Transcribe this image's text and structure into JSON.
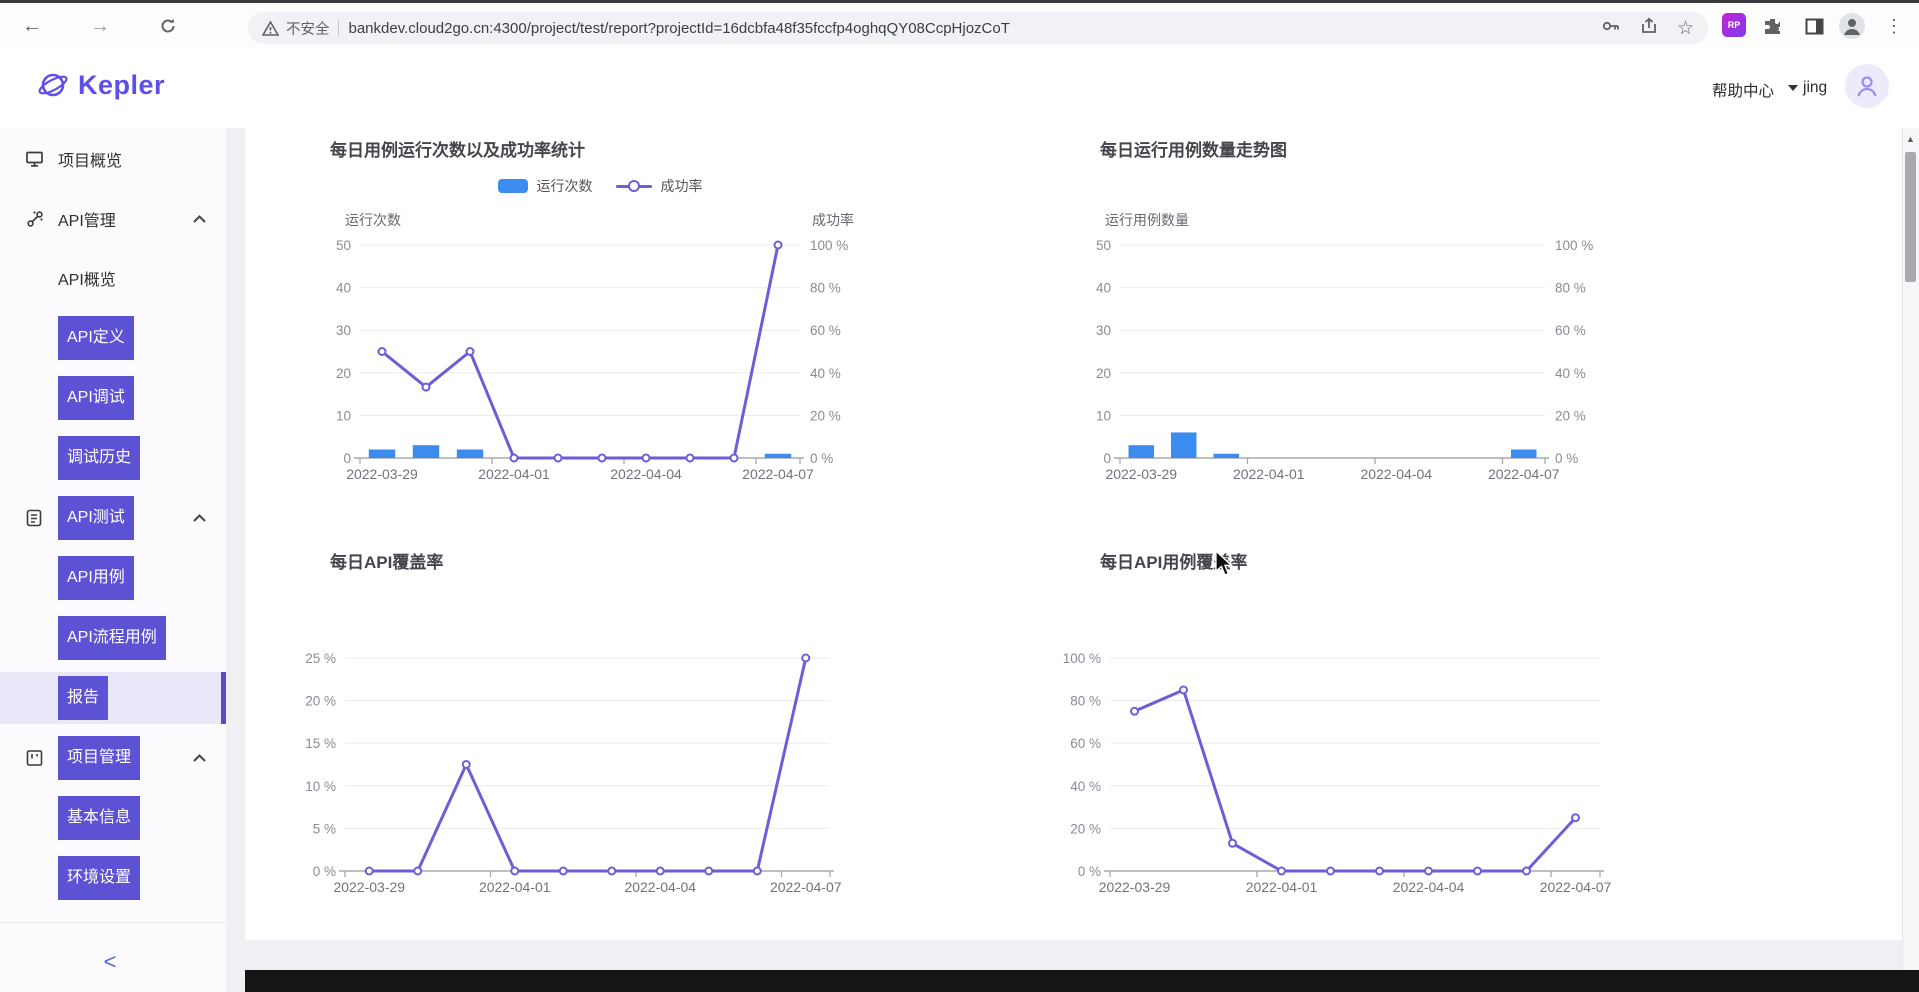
{
  "colors": {
    "accent_purple": "#5e52d4",
    "selected_row_bg": "#eae7f8",
    "bar_blue": "#3c8cf0",
    "line_purple": "#6e5dd8",
    "kepler_purple": "#5d4fe8"
  },
  "browser": {
    "security_label": "不安全",
    "url": "bankdev.cloud2go.cn:4300/project/test/report?projectId=16dcbfa48f35fccfp4oghqQY08CcpHjozCoT",
    "extension_badge": "RP"
  },
  "header": {
    "logo_text": "Kepler",
    "help_label": "帮助中心",
    "username": "jing"
  },
  "sidebar": {
    "items": [
      {
        "label": "项目概览",
        "icon": "monitor"
      },
      {
        "label": "API管理",
        "icon": "api"
      },
      {
        "label": "API概览"
      },
      {
        "label": "API定义",
        "boxed": true
      },
      {
        "label": "API调试",
        "boxed": true
      },
      {
        "label": "调试历史",
        "boxed": true
      },
      {
        "label": "API测试",
        "icon": "doc",
        "boxed": true
      },
      {
        "label": "API用例",
        "boxed": true
      },
      {
        "label": "API流程用例",
        "boxed": true
      },
      {
        "label": "报告",
        "boxed": true,
        "selected": true
      },
      {
        "label": "项目管理",
        "icon": "board",
        "boxed": true
      },
      {
        "label": "基本信息",
        "boxed": true
      },
      {
        "label": "环境设置",
        "boxed": true
      }
    ],
    "collapse_label": "<"
  },
  "chart_data": [
    {
      "type": "bar+line",
      "title": "每日用例运行次数以及成功率统计",
      "categories": [
        "2022-03-29",
        "2022-03-30",
        "2022-03-31",
        "2022-04-01",
        "2022-04-02",
        "2022-04-03",
        "2022-04-04",
        "2022-04-05",
        "2022-04-06",
        "2022-04-07"
      ],
      "x_axis_labels_shown": [
        "2022-03-29",
        "2022-04-01",
        "2022-04-04",
        "2022-04-07"
      ],
      "left_axis": {
        "title": "运行次数",
        "min": 0,
        "max": 50,
        "labels": [
          "50",
          "40",
          "30",
          "20",
          "10",
          "0"
        ]
      },
      "right_axis": {
        "title": "成功率",
        "min": 0,
        "max": 100,
        "labels": [
          "100 %",
          "80 %",
          "60 %",
          "40 %",
          "20 %",
          "0 %"
        ]
      },
      "legend": [
        "运行次数",
        "成功率"
      ],
      "grid": true,
      "series": [
        {
          "name": "运行次数",
          "kind": "bar",
          "axis": "left",
          "color": "#3c8cf0",
          "values": [
            2,
            3,
            2,
            0,
            0,
            0,
            0,
            0,
            0,
            1
          ]
        },
        {
          "name": "成功率",
          "kind": "line",
          "axis": "right",
          "color": "#6e5dd8",
          "values": [
            50,
            33.3,
            50,
            0,
            0,
            0,
            0,
            0,
            0,
            100
          ]
        }
      ]
    },
    {
      "type": "bar",
      "title": "每日运行用例数量走势图",
      "categories": [
        "2022-03-29",
        "2022-03-30",
        "2022-03-31",
        "2022-04-01",
        "2022-04-02",
        "2022-04-03",
        "2022-04-04",
        "2022-04-05",
        "2022-04-06",
        "2022-04-07"
      ],
      "x_axis_labels_shown": [
        "2022-03-29",
        "2022-04-01",
        "2022-04-04",
        "2022-04-07"
      ],
      "left_axis": {
        "title": "运行用例数量",
        "min": 0,
        "max": 50,
        "labels": [
          "50",
          "40",
          "30",
          "20",
          "10",
          "0"
        ]
      },
      "right_axis": {
        "title": "",
        "min": 0,
        "max": 100,
        "labels": [
          "100 %",
          "80 %",
          "60 %",
          "40 %",
          "20 %",
          "0 %"
        ]
      },
      "grid": true,
      "series": [
        {
          "name": "运行用例数量",
          "kind": "bar",
          "axis": "left",
          "color": "#3c8cf0",
          "values": [
            3,
            6,
            1,
            0,
            0,
            0,
            0,
            0,
            0,
            2
          ]
        }
      ]
    },
    {
      "type": "line",
      "title": "每日API覆盖率",
      "categories": [
        "2022-03-29",
        "2022-03-30",
        "2022-03-31",
        "2022-04-01",
        "2022-04-02",
        "2022-04-03",
        "2022-04-04",
        "2022-04-05",
        "2022-04-06",
        "2022-04-07"
      ],
      "x_axis_labels_shown": [
        "2022-03-29",
        "2022-04-01",
        "2022-04-04",
        "2022-04-07"
      ],
      "left_axis": {
        "title": "",
        "min": 0,
        "max": 25,
        "labels": [
          "25 %",
          "20 %",
          "15 %",
          "10 %",
          "5 %",
          "0 %"
        ]
      },
      "grid": true,
      "series": [
        {
          "name": "API覆盖率",
          "kind": "line",
          "axis": "left",
          "color": "#6e5dd8",
          "values": [
            0,
            0,
            12.5,
            0,
            0,
            0,
            0,
            0,
            0,
            25
          ]
        }
      ]
    },
    {
      "type": "line",
      "title": "每日API用例覆盖率",
      "categories": [
        "2022-03-29",
        "2022-03-30",
        "2022-03-31",
        "2022-04-01",
        "2022-04-02",
        "2022-04-03",
        "2022-04-04",
        "2022-04-05",
        "2022-04-06",
        "2022-04-07"
      ],
      "x_axis_labels_shown": [
        "2022-03-29",
        "2022-04-01",
        "2022-04-04",
        "2022-04-07"
      ],
      "left_axis": {
        "title": "",
        "min": 0,
        "max": 100,
        "labels": [
          "100 %",
          "80 %",
          "60 %",
          "40 %",
          "20 %",
          "0 %"
        ]
      },
      "grid": true,
      "series": [
        {
          "name": "API用例覆盖率",
          "kind": "line",
          "axis": "left",
          "color": "#6e5dd8",
          "values": [
            75,
            85,
            13,
            0,
            0,
            0,
            0,
            0,
            0,
            25
          ]
        }
      ]
    }
  ]
}
